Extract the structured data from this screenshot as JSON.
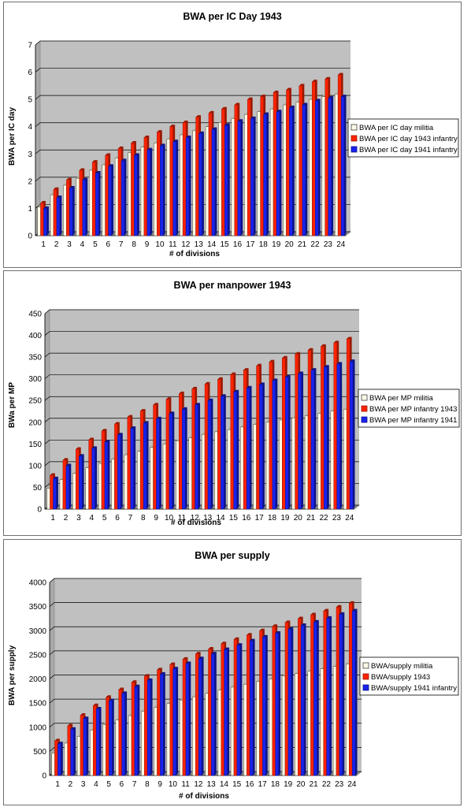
{
  "colors": {
    "plot_bg": "#c0c0c0",
    "grid": "#000000",
    "militia_fill": "#fdfbe6",
    "militia_edge": "#404040",
    "inf1943": "#ff2200",
    "inf1943_dark": "#9a1800",
    "inf1941": "#1a22ee",
    "inf1941_dark": "#0c1388"
  },
  "chart_data": [
    {
      "type": "bar",
      "title": "BWA per IC Day 1943",
      "xlabel": "# of divisions",
      "ylabel": "BWA per IC day",
      "ylim": [
        0,
        7
      ],
      "yticks": [
        "0",
        "1",
        "2",
        "3",
        "4",
        "5",
        "6",
        "7"
      ],
      "yticks_values": [
        0,
        1,
        2,
        3,
        4,
        5,
        6,
        7
      ],
      "categories": [
        "1",
        "2",
        "3",
        "4",
        "5",
        "6",
        "7",
        "8",
        "9",
        "10",
        "11",
        "12",
        "13",
        "14",
        "15",
        "16",
        "17",
        "18",
        "19",
        "20",
        "21",
        "22",
        "23",
        "24"
      ],
      "grid": true,
      "legend_position": "right",
      "series": [
        {
          "name": "BWA per IC day militia",
          "color": "militia",
          "values": [
            1.05,
            1.5,
            1.85,
            2.1,
            2.4,
            2.6,
            2.85,
            3.05,
            3.25,
            3.4,
            3.55,
            3.7,
            3.85,
            4.0,
            4.15,
            4.3,
            4.45,
            4.55,
            4.65,
            4.8,
            4.9,
            5.0,
            5.1,
            5.2
          ]
        },
        {
          "name": "BWA per IC day 1943 infantry",
          "color": "inf1943",
          "values": [
            1.2,
            1.7,
            2.05,
            2.4,
            2.7,
            2.95,
            3.2,
            3.4,
            3.6,
            3.8,
            4.0,
            4.15,
            4.35,
            4.5,
            4.65,
            4.8,
            5.0,
            5.1,
            5.25,
            5.35,
            5.5,
            5.65,
            5.75,
            5.9
          ]
        },
        {
          "name": "BWA per IC day 1941 infantry",
          "color": "inf1941",
          "values": [
            1.0,
            1.4,
            1.75,
            2.05,
            2.3,
            2.55,
            2.75,
            2.95,
            3.15,
            3.3,
            3.45,
            3.6,
            3.75,
            3.9,
            4.05,
            4.2,
            4.3,
            4.45,
            4.55,
            4.7,
            4.8,
            4.95,
            5.05,
            5.1
          ]
        }
      ]
    },
    {
      "type": "bar",
      "title": "BWA per manpower 1943",
      "xlabel": "# of divisions",
      "ylabel": "BWa per MP",
      "ylim": [
        0,
        450
      ],
      "yticks": [
        "0",
        "50",
        "100",
        "150",
        "200",
        "250",
        "300",
        "350",
        "400",
        "450"
      ],
      "yticks_values": [
        0,
        50,
        100,
        150,
        200,
        250,
        300,
        350,
        400,
        450
      ],
      "categories": [
        "1",
        "2",
        "3",
        "4",
        "5",
        "6",
        "7",
        "8",
        "9",
        "10",
        "11",
        "12",
        "13",
        "14",
        "15",
        "16",
        "17",
        "18",
        "19",
        "20",
        "21",
        "22",
        "23",
        "24"
      ],
      "grid": true,
      "legend_position": "right",
      "series": [
        {
          "name": "BWA per MP militia",
          "color": "militia",
          "values": [
            48,
            68,
            82,
            95,
            105,
            115,
            125,
            133,
            142,
            150,
            157,
            164,
            172,
            178,
            183,
            189,
            195,
            200,
            205,
            210,
            215,
            220,
            226,
            230
          ]
        },
        {
          "name": "BWA per MP infantry 1943",
          "color": "inf1943",
          "values": [
            78,
            113,
            138,
            160,
            180,
            196,
            212,
            226,
            240,
            253,
            266,
            277,
            288,
            299,
            310,
            320,
            330,
            339,
            348,
            357,
            366,
            375,
            383,
            392
          ]
        },
        {
          "name": "BWA per MP infantry 1941",
          "color": "inf1941",
          "values": [
            70,
            100,
            122,
            140,
            155,
            171,
            186,
            198,
            208,
            220,
            230,
            240,
            250,
            260,
            270,
            279,
            287,
            296,
            304,
            312,
            320,
            327,
            334,
            340
          ]
        }
      ]
    },
    {
      "type": "bar",
      "title": "BWA per supply",
      "xlabel": "# of divisions",
      "ylabel": "BWA per supply",
      "ylim": [
        0,
        4000
      ],
      "yticks": [
        "0",
        "500",
        "1000",
        "1500",
        "2000",
        "2500",
        "3000",
        "3500",
        "4000"
      ],
      "yticks_values": [
        0,
        500,
        1000,
        1500,
        2000,
        2500,
        3000,
        3500,
        4000
      ],
      "categories": [
        "1",
        "2",
        "3",
        "4",
        "5",
        "6",
        "7",
        "8",
        "9",
        "10",
        "11",
        "12",
        "13",
        "14",
        "15",
        "16",
        "17",
        "18",
        "19",
        "20",
        "21",
        "22",
        "23",
        "24"
      ],
      "grid": true,
      "legend_position": "right",
      "series": [
        {
          "name": "BWA/supply militia",
          "color": "militia",
          "values": [
            460,
            670,
            810,
            940,
            1050,
            1150,
            1240,
            1330,
            1410,
            1490,
            1560,
            1630,
            1700,
            1770,
            1830,
            1890,
            1950,
            2000,
            2060,
            2110,
            2160,
            2210,
            2260,
            2310
          ]
        },
        {
          "name": "BWA/supply 1943",
          "color": "inf1943",
          "values": [
            720,
            1030,
            1250,
            1450,
            1620,
            1780,
            1930,
            2060,
            2190,
            2300,
            2410,
            2520,
            2620,
            2730,
            2820,
            2910,
            3000,
            3090,
            3170,
            3250,
            3330,
            3410,
            3490,
            3570
          ]
        },
        {
          "name": "BWA/supply 1941 infantry",
          "color": "inf1941",
          "values": [
            660,
            960,
            1180,
            1380,
            1550,
            1700,
            1840,
            1970,
            2100,
            2210,
            2320,
            2420,
            2520,
            2610,
            2700,
            2790,
            2870,
            2950,
            3030,
            3110,
            3180,
            3260,
            3340,
            3410
          ]
        }
      ]
    }
  ]
}
